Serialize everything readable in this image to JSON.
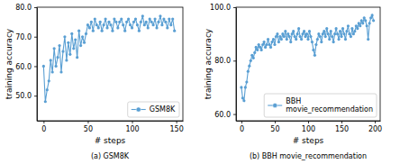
{
  "chart_data": [
    {
      "type": "line",
      "title": "(a) GSM8K",
      "x_label": "# steps",
      "y_label": "training accuracy",
      "x": [
        0,
        2,
        4,
        6,
        8,
        10,
        12,
        14,
        16,
        18,
        20,
        22,
        24,
        26,
        28,
        30,
        32,
        34,
        36,
        38,
        40,
        42,
        44,
        46,
        48,
        50,
        52,
        54,
        56,
        58,
        60,
        62,
        64,
        66,
        68,
        70,
        72,
        74,
        76,
        78,
        80,
        82,
        84,
        86,
        88,
        90,
        92,
        94,
        96,
        98,
        100,
        102,
        104,
        106,
        108,
        110,
        112,
        114,
        116,
        118,
        120,
        122,
        124,
        126,
        128,
        130,
        132,
        134,
        136,
        138,
        140,
        142,
        144,
        146,
        148
      ],
      "series": [
        {
          "name": "GSM8K",
          "color": "#5a9fd3",
          "marker": "o",
          "values": [
            60,
            48,
            52,
            55,
            62,
            58,
            66,
            60,
            63,
            67,
            58,
            65,
            70,
            62,
            68,
            64,
            71,
            66,
            69,
            63,
            72,
            67,
            70,
            68,
            71,
            74,
            73,
            75,
            72,
            76,
            74,
            73,
            75,
            72,
            74,
            76,
            73,
            75,
            74,
            72,
            76,
            75,
            73,
            75,
            76,
            74,
            72,
            75,
            76,
            74,
            73,
            75,
            76,
            74,
            72,
            75,
            77,
            74,
            75,
            73,
            76,
            75,
            74,
            76,
            73,
            75,
            77,
            74,
            76,
            75,
            73,
            76,
            74,
            76,
            72
          ]
        }
      ],
      "xlim": [
        -7.5,
        157.5
      ],
      "ylim": [
        41.5,
        80
      ],
      "xticks": [
        0,
        50,
        100,
        150
      ],
      "yticks": [
        {
          "value": 50,
          "label": "50.0"
        },
        {
          "value": 60,
          "label": "60.0"
        },
        {
          "value": 70,
          "label": "70.0"
        },
        {
          "value": 80,
          "label": "80.0"
        }
      ],
      "grid": false,
      "legend": "lower right"
    },
    {
      "type": "line",
      "title": "(b) BBH movie_recommendation",
      "x_label": "# steps",
      "y_label": "training accuracy",
      "x": [
        0,
        2,
        4,
        6,
        8,
        10,
        12,
        14,
        16,
        18,
        20,
        22,
        24,
        26,
        28,
        30,
        32,
        34,
        36,
        38,
        40,
        42,
        44,
        46,
        48,
        50,
        52,
        54,
        56,
        58,
        60,
        62,
        64,
        66,
        68,
        70,
        72,
        74,
        76,
        78,
        80,
        82,
        84,
        86,
        88,
        90,
        92,
        94,
        96,
        98,
        100,
        102,
        104,
        106,
        108,
        110,
        112,
        114,
        116,
        118,
        120,
        122,
        124,
        126,
        128,
        130,
        132,
        134,
        136,
        138,
        140,
        142,
        144,
        146,
        148,
        150,
        152,
        154,
        156,
        158,
        160,
        162,
        164,
        166,
        168,
        170,
        172,
        174,
        176,
        178,
        180,
        182,
        184,
        186,
        188,
        190,
        192,
        194,
        196,
        198
      ],
      "series": [
        {
          "name": "BBH\nmovie_recommendation",
          "color": "#5a9fd3",
          "marker": "o",
          "values": [
            70,
            66,
            65,
            70,
            72,
            76,
            78,
            80,
            82,
            81,
            83,
            85,
            84,
            86,
            85,
            84,
            86,
            87,
            85,
            86,
            88,
            86,
            85,
            87,
            88,
            86,
            89,
            90,
            87,
            89,
            88,
            90,
            89,
            91,
            88,
            90,
            89,
            87,
            90,
            91,
            89,
            88,
            90,
            92,
            89,
            88,
            90,
            91,
            89,
            90,
            88,
            91,
            89,
            87,
            84,
            82,
            86,
            88,
            90,
            89,
            87,
            90,
            91,
            89,
            92,
            90,
            88,
            91,
            89,
            87,
            90,
            92,
            90,
            88,
            91,
            89,
            92,
            90,
            88,
            91,
            93,
            90,
            89,
            92,
            90,
            91,
            93,
            92,
            94,
            93,
            95,
            94,
            96,
            95,
            93,
            88,
            94,
            96,
            97,
            95
          ]
        }
      ],
      "xlim": [
        -8,
        208
      ],
      "ylim": [
        57.5,
        100
      ],
      "xticks": [
        0,
        50,
        100,
        150,
        200
      ],
      "yticks": [
        {
          "value": 60,
          "label": "60.0"
        },
        {
          "value": 80,
          "label": "80.0"
        },
        {
          "value": 100,
          "label": "100.0"
        }
      ],
      "grid": false,
      "legend": "lower right"
    }
  ]
}
